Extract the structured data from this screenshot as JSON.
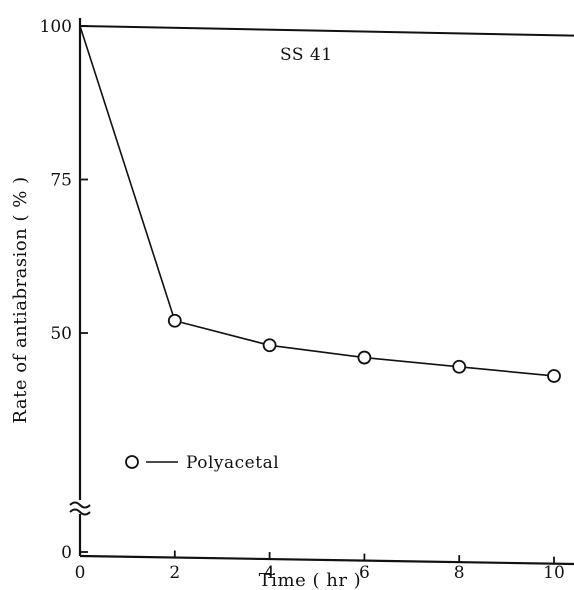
{
  "chart_data": {
    "type": "line",
    "xlabel": "Time ( hr )",
    "ylabel": "Rate of antiabrasion ( % )",
    "xlim": [
      0,
      10
    ],
    "ylim": [
      0,
      100
    ],
    "y_axis_break": true,
    "x_ticks": [
      "0",
      "2",
      "4",
      "6",
      "8",
      "10"
    ],
    "y_ticks": [
      "0",
      "50",
      "75",
      "100"
    ],
    "series": [
      {
        "name": "SS 41",
        "marker": "none",
        "x": [
          0,
          10
        ],
        "y": [
          100,
          98.5
        ]
      },
      {
        "name": "Polyacetal",
        "marker": "open-circle",
        "x": [
          0,
          2,
          4,
          6,
          8,
          10
        ],
        "y": [
          100,
          52,
          48,
          46,
          44.5,
          43
        ]
      }
    ],
    "legend": {
      "position": "bottom-left",
      "entries": [
        {
          "marker": "open-circle",
          "label": "Polyacetal"
        }
      ]
    },
    "colors": {
      "ink": "#111111",
      "background": "#ffffff"
    }
  }
}
